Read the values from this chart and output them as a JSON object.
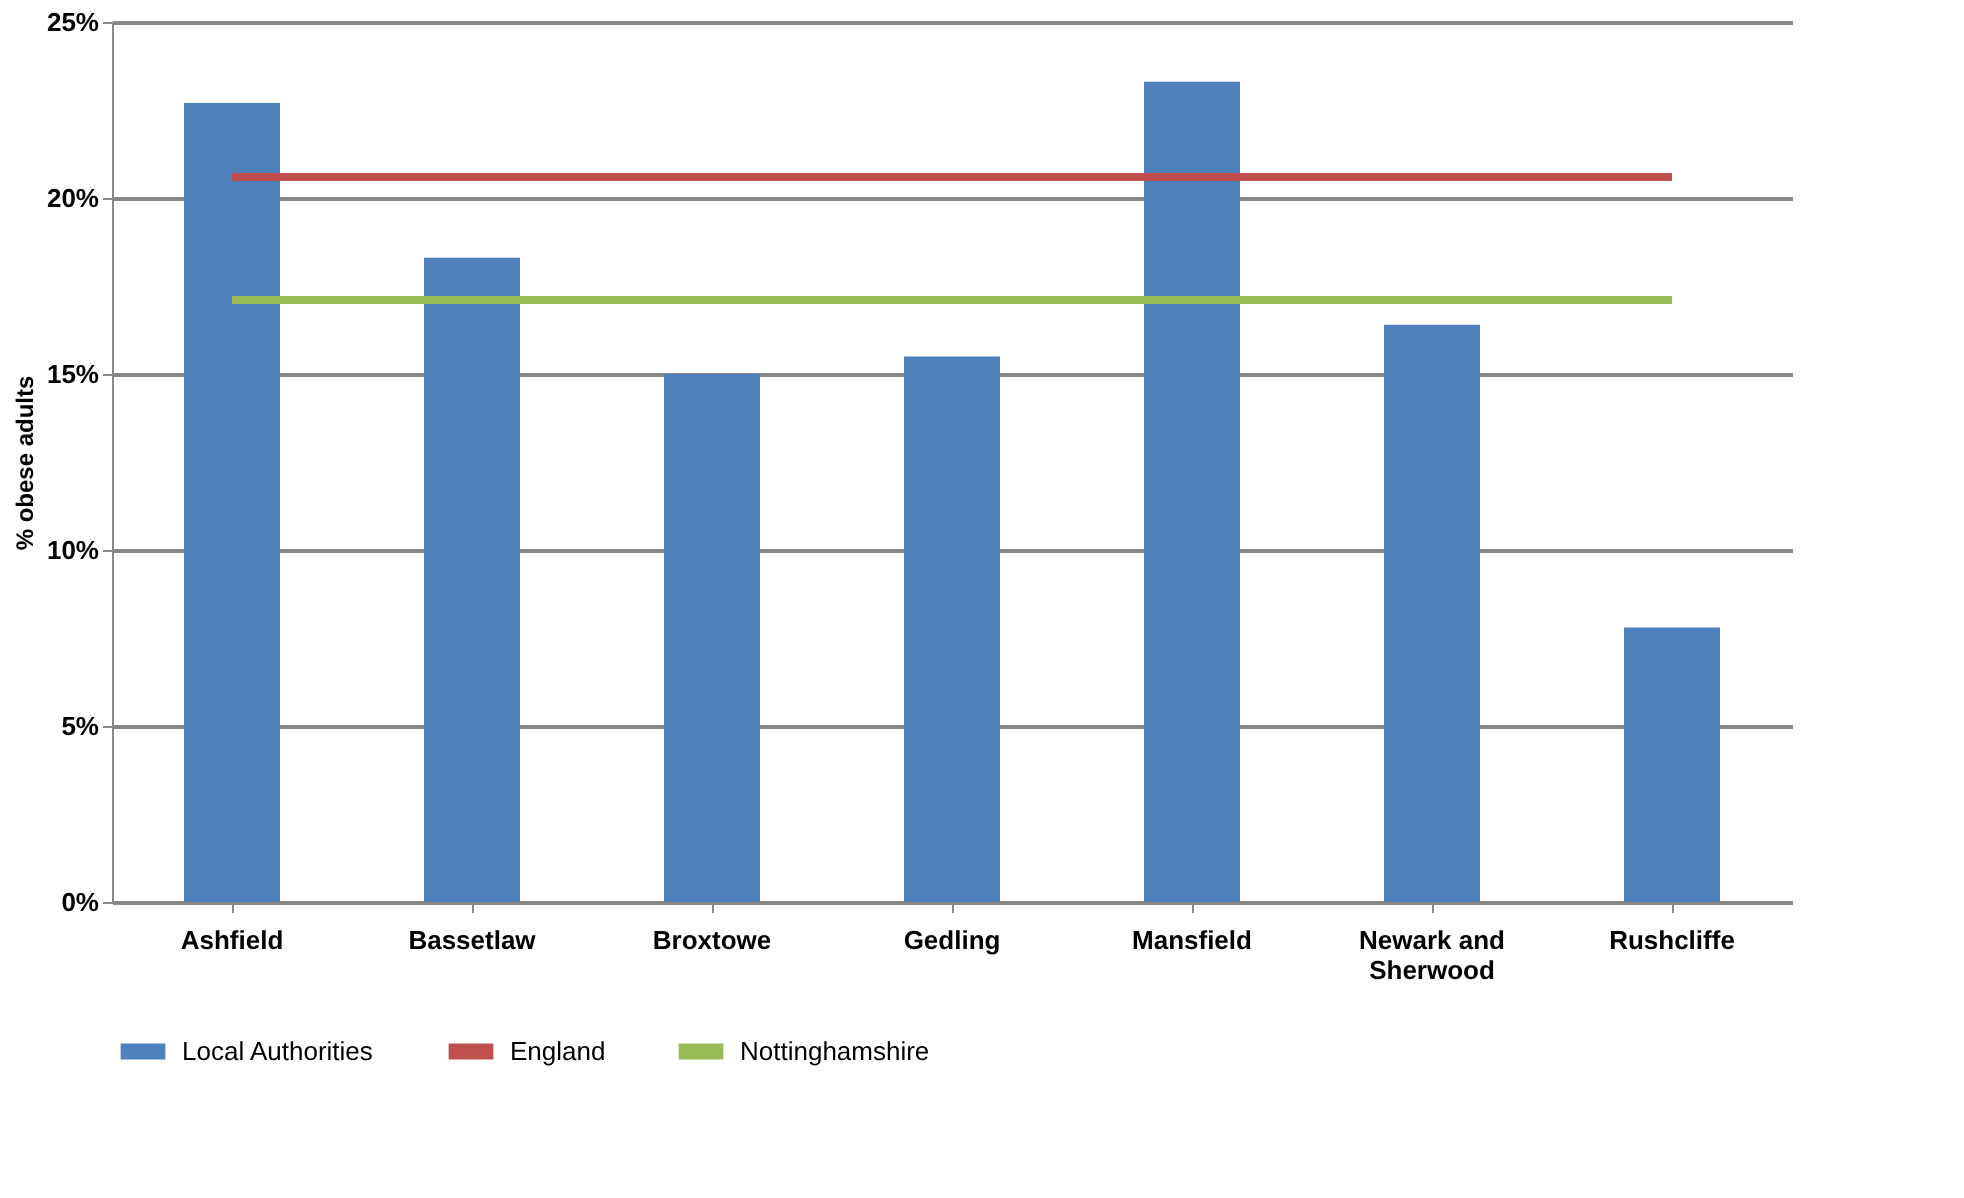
{
  "chart_data": {
    "type": "bar",
    "ylabel": "% obese adults",
    "categories": [
      "Ashfield",
      "Bassetlaw",
      "Broxtowe",
      "Gedling",
      "Mansfield",
      "Newark and Sherwood",
      "Rushcliffe"
    ],
    "series": [
      {
        "name": "Local Authorities",
        "color": "#4f81bd",
        "values": [
          22.7,
          18.3,
          15.0,
          15.5,
          23.3,
          16.4,
          7.8
        ]
      },
      {
        "name": "England",
        "type": "line",
        "color": "#c0504d",
        "values": [
          20.6,
          20.6,
          20.6,
          20.6,
          20.6,
          20.6,
          20.6
        ]
      },
      {
        "name": "Nottinghamshire",
        "type": "line",
        "color": "#9bbb59",
        "values": [
          17.1,
          17.1,
          17.1,
          17.1,
          17.1,
          17.1,
          17.1
        ]
      }
    ],
    "ylim": [
      0,
      25
    ],
    "yticks": [
      {
        "value": 0,
        "label": "0%"
      },
      {
        "value": 5,
        "label": "5%"
      },
      {
        "value": 10,
        "label": "10%"
      },
      {
        "value": 15,
        "label": "15%"
      },
      {
        "value": 20,
        "label": "20%"
      },
      {
        "value": 25,
        "label": "25%"
      }
    ],
    "grid": "y",
    "legend": "bottom",
    "marker": "none"
  }
}
